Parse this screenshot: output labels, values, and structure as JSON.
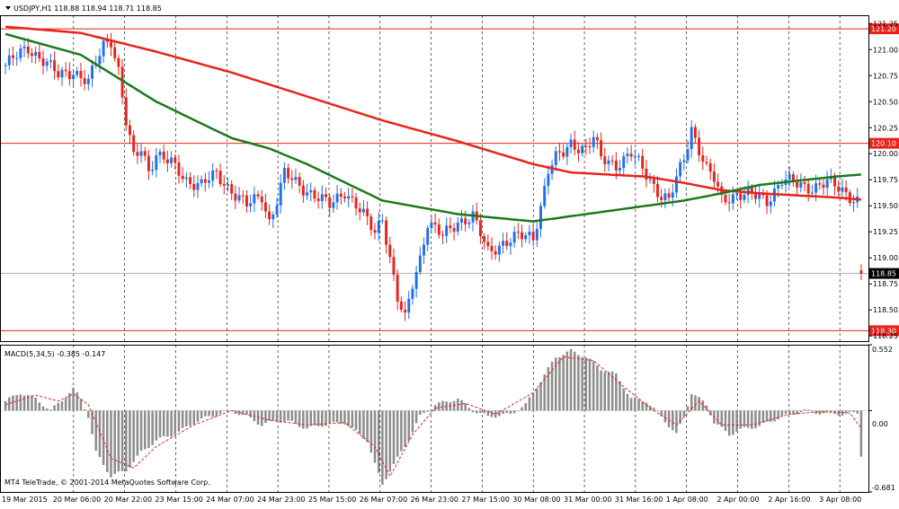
{
  "header": {
    "symbol_text": "USDJPY,H1  118.88 118.94 118.71 118.85"
  },
  "macd": {
    "label": "MACD(5,34,5) -0.385 -0.147",
    "ticks": [
      "0.552",
      "0.00",
      "-0.681"
    ]
  },
  "copyright": "MT4 TeleTrade, © 2001-2014 MetaQuotes Software Corp.",
  "colors": {
    "bull": "#1e6ff2",
    "bear": "#e8231a",
    "ma_slow": "#e8231a",
    "ma_fast": "#1a7a1a",
    "level_line": "#e8231a",
    "current_price": "#000000",
    "macd_hist": "#8c8c8c",
    "macd_signal": "#e8231a"
  },
  "chart_data": [
    {
      "type": "candlestick",
      "symbol": "USDJPY",
      "timeframe": "H1",
      "last_bar": {
        "open": 118.88,
        "high": 118.94,
        "low": 118.71,
        "close": 118.85
      },
      "ylim": [
        118.2,
        121.33
      ],
      "y_ticks": [
        "121.25",
        "121.00",
        "120.75",
        "120.50",
        "120.25",
        "120.00",
        "119.75",
        "119.50",
        "119.25",
        "119.00",
        "118.75",
        "118.50",
        "118.25"
      ],
      "x_ticks": [
        "19 Mar 2015",
        "20 Mar 06:00",
        "20 Mar 22:00",
        "23 Mar 15:00",
        "24 Mar 07:00",
        "24 Mar 23:00",
        "25 Mar 15:00",
        "26 Mar 07:00",
        "26 Mar 23:00",
        "27 Mar 15:00",
        "30 Mar 08:00",
        "31 Mar 00:00",
        "31 Mar 16:00",
        "1 Apr 08:00",
        "2 Apr 00:00",
        "2 Apr 16:00",
        "3 Apr 08:00"
      ],
      "levels": [
        {
          "label": "121.20",
          "value": 121.2
        },
        {
          "label": "120.10",
          "value": 120.1
        },
        {
          "label": "118.30",
          "value": 118.3
        }
      ],
      "current_price": {
        "label": "118.85",
        "value": 118.85
      },
      "close_path": [
        [
          0,
          120.85
        ],
        [
          6,
          121.02
        ],
        [
          10,
          120.9
        ],
        [
          14,
          120.75
        ],
        [
          18,
          120.8
        ],
        [
          22,
          120.68
        ],
        [
          26,
          121.05
        ],
        [
          28,
          121.1
        ],
        [
          30,
          120.8
        ],
        [
          32,
          120.3
        ],
        [
          34,
          119.95
        ],
        [
          36,
          120.05
        ],
        [
          38,
          119.85
        ],
        [
          40,
          120.0
        ],
        [
          44,
          119.9
        ],
        [
          48,
          119.75
        ],
        [
          52,
          119.7
        ],
        [
          56,
          119.8
        ],
        [
          60,
          119.65
        ],
        [
          64,
          119.5
        ],
        [
          68,
          119.6
        ],
        [
          70,
          119.35
        ],
        [
          72,
          119.55
        ],
        [
          74,
          119.8
        ],
        [
          78,
          119.7
        ],
        [
          82,
          119.6
        ],
        [
          86,
          119.5
        ],
        [
          90,
          119.65
        ],
        [
          94,
          119.45
        ],
        [
          98,
          119.25
        ],
        [
          100,
          119.4
        ],
        [
          102,
          119.0
        ],
        [
          104,
          118.6
        ],
        [
          106,
          118.4
        ],
        [
          108,
          118.75
        ],
        [
          110,
          119.0
        ],
        [
          112,
          119.35
        ],
        [
          116,
          119.2
        ],
        [
          120,
          119.35
        ],
        [
          124,
          119.4
        ],
        [
          128,
          119.05
        ],
        [
          132,
          119.15
        ],
        [
          136,
          119.2
        ],
        [
          140,
          119.2
        ],
        [
          142,
          119.5
        ],
        [
          144,
          119.85
        ],
        [
          146,
          119.95
        ],
        [
          148,
          120.0
        ],
        [
          150,
          120.1
        ],
        [
          154,
          120.05
        ],
        [
          156,
          120.15
        ],
        [
          158,
          119.95
        ],
        [
          162,
          119.9
        ],
        [
          166,
          120.0
        ],
        [
          170,
          119.8
        ],
        [
          174,
          119.6
        ],
        [
          176,
          119.55
        ],
        [
          180,
          119.95
        ],
        [
          182,
          120.25
        ],
        [
          186,
          119.85
        ],
        [
          188,
          119.75
        ],
        [
          190,
          119.55
        ],
        [
          194,
          119.62
        ],
        [
          198,
          119.6
        ],
        [
          202,
          119.55
        ],
        [
          206,
          119.75
        ],
        [
          210,
          119.7
        ],
        [
          214,
          119.68
        ],
        [
          218,
          119.72
        ],
        [
          222,
          119.65
        ],
        [
          224,
          119.6
        ],
        [
          226,
          119.55
        ],
        [
          227,
          118.85
        ]
      ],
      "moving_averages": [
        {
          "color": "red",
          "points": [
            [
              0,
              121.22
            ],
            [
              20,
              121.16
            ],
            [
              40,
              120.98
            ],
            [
              60,
              120.78
            ],
            [
              80,
              120.55
            ],
            [
              100,
              120.32
            ],
            [
              120,
              120.12
            ],
            [
              140,
              119.9
            ],
            [
              150,
              119.82
            ],
            [
              160,
              119.8
            ],
            [
              170,
              119.78
            ],
            [
              180,
              119.72
            ],
            [
              190,
              119.65
            ],
            [
              200,
              119.62
            ],
            [
              220,
              119.58
            ],
            [
              227,
              119.56
            ]
          ]
        },
        {
          "color": "green",
          "points": [
            [
              0,
              121.15
            ],
            [
              20,
              120.95
            ],
            [
              40,
              120.5
            ],
            [
              60,
              120.15
            ],
            [
              70,
              120.05
            ],
            [
              80,
              119.9
            ],
            [
              100,
              119.55
            ],
            [
              120,
              119.42
            ],
            [
              140,
              119.35
            ],
            [
              150,
              119.4
            ],
            [
              160,
              119.45
            ],
            [
              170,
              119.5
            ],
            [
              180,
              119.55
            ],
            [
              190,
              119.62
            ],
            [
              200,
              119.7
            ],
            [
              220,
              119.78
            ],
            [
              227,
              119.8
            ]
          ]
        }
      ]
    },
    {
      "type": "macd",
      "params": "5,34,5",
      "main": -0.385,
      "signal": -0.147,
      "ylim": [
        -0.681,
        0.552
      ],
      "histogram_keypoints": [
        [
          0,
          0.08
        ],
        [
          4,
          0.15
        ],
        [
          8,
          0.1
        ],
        [
          12,
          0.0
        ],
        [
          16,
          0.12
        ],
        [
          18,
          0.18
        ],
        [
          20,
          0.1
        ],
        [
          22,
          -0.05
        ],
        [
          24,
          -0.35
        ],
        [
          28,
          -0.55
        ],
        [
          32,
          -0.5
        ],
        [
          36,
          -0.35
        ],
        [
          40,
          -0.25
        ],
        [
          46,
          -0.18
        ],
        [
          50,
          -0.1
        ],
        [
          54,
          -0.05
        ],
        [
          60,
          0.0
        ],
        [
          64,
          -0.05
        ],
        [
          68,
          -0.12
        ],
        [
          72,
          -0.08
        ],
        [
          76,
          -0.1
        ],
        [
          80,
          -0.15
        ],
        [
          84,
          -0.12
        ],
        [
          90,
          -0.1
        ],
        [
          96,
          -0.25
        ],
        [
          98,
          -0.45
        ],
        [
          100,
          -0.62
        ],
        [
          102,
          -0.5
        ],
        [
          106,
          -0.3
        ],
        [
          110,
          -0.05
        ],
        [
          114,
          0.05
        ],
        [
          120,
          0.1
        ],
        [
          124,
          0.0
        ],
        [
          128,
          -0.05
        ],
        [
          134,
          -0.03
        ],
        [
          138,
          0.05
        ],
        [
          142,
          0.25
        ],
        [
          146,
          0.45
        ],
        [
          150,
          0.5
        ],
        [
          154,
          0.45
        ],
        [
          158,
          0.35
        ],
        [
          162,
          0.3
        ],
        [
          166,
          0.1
        ],
        [
          170,
          0.08
        ],
        [
          174,
          -0.05
        ],
        [
          178,
          -0.2
        ],
        [
          180,
          -0.05
        ],
        [
          182,
          0.15
        ],
        [
          186,
          0.05
        ],
        [
          188,
          -0.1
        ],
        [
          192,
          -0.2
        ],
        [
          196,
          -0.15
        ],
        [
          200,
          -0.13
        ],
        [
          206,
          -0.05
        ],
        [
          212,
          0.0
        ],
        [
          216,
          -0.02
        ],
        [
          222,
          -0.03
        ],
        [
          226,
          -0.02
        ],
        [
          227,
          -0.385
        ]
      ],
      "signal_keypoints": [
        [
          0,
          0.05
        ],
        [
          8,
          0.13
        ],
        [
          14,
          0.08
        ],
        [
          18,
          0.14
        ],
        [
          22,
          0.05
        ],
        [
          28,
          -0.4
        ],
        [
          34,
          -0.48
        ],
        [
          40,
          -0.3
        ],
        [
          50,
          -0.12
        ],
        [
          60,
          0.0
        ],
        [
          70,
          -0.08
        ],
        [
          80,
          -0.12
        ],
        [
          90,
          -0.1
        ],
        [
          98,
          -0.3
        ],
        [
          102,
          -0.55
        ],
        [
          108,
          -0.2
        ],
        [
          114,
          0.02
        ],
        [
          122,
          0.06
        ],
        [
          130,
          -0.03
        ],
        [
          140,
          0.15
        ],
        [
          148,
          0.45
        ],
        [
          156,
          0.42
        ],
        [
          164,
          0.2
        ],
        [
          172,
          0.0
        ],
        [
          178,
          -0.12
        ],
        [
          184,
          0.08
        ],
        [
          190,
          -0.12
        ],
        [
          198,
          -0.12
        ],
        [
          208,
          -0.03
        ],
        [
          216,
          -0.01
        ],
        [
          224,
          -0.02
        ],
        [
          227,
          -0.147
        ]
      ]
    }
  ]
}
